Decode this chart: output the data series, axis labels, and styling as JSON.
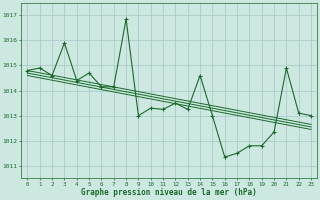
{
  "x": [
    0,
    1,
    2,
    3,
    4,
    5,
    6,
    7,
    8,
    9,
    10,
    11,
    12,
    13,
    14,
    15,
    16,
    17,
    18,
    19,
    20,
    21,
    22,
    23
  ],
  "y": [
    1014.8,
    1014.9,
    1014.6,
    1015.9,
    1014.4,
    1014.7,
    1014.15,
    1014.15,
    1016.85,
    1013.0,
    1013.3,
    1013.25,
    1013.5,
    1013.25,
    1014.6,
    1013.0,
    1011.35,
    1011.5,
    1011.8,
    1011.8,
    1012.35,
    1014.9,
    1013.1,
    1013.0
  ],
  "trend_lines": [
    [
      1014.8,
      1012.65
    ],
    [
      1014.7,
      1012.55
    ],
    [
      1014.6,
      1012.45
    ]
  ],
  "background_color": "#cce8e0",
  "grid_color": "#aacccc",
  "line_color": "#1a6b2a",
  "ylabel_ticks": [
    1011,
    1012,
    1013,
    1014,
    1015,
    1016,
    1017
  ],
  "xlabel": "Graphe pression niveau de la mer (hPa)",
  "ylim": [
    1010.5,
    1017.5
  ],
  "xlim": [
    -0.5,
    23.5
  ]
}
